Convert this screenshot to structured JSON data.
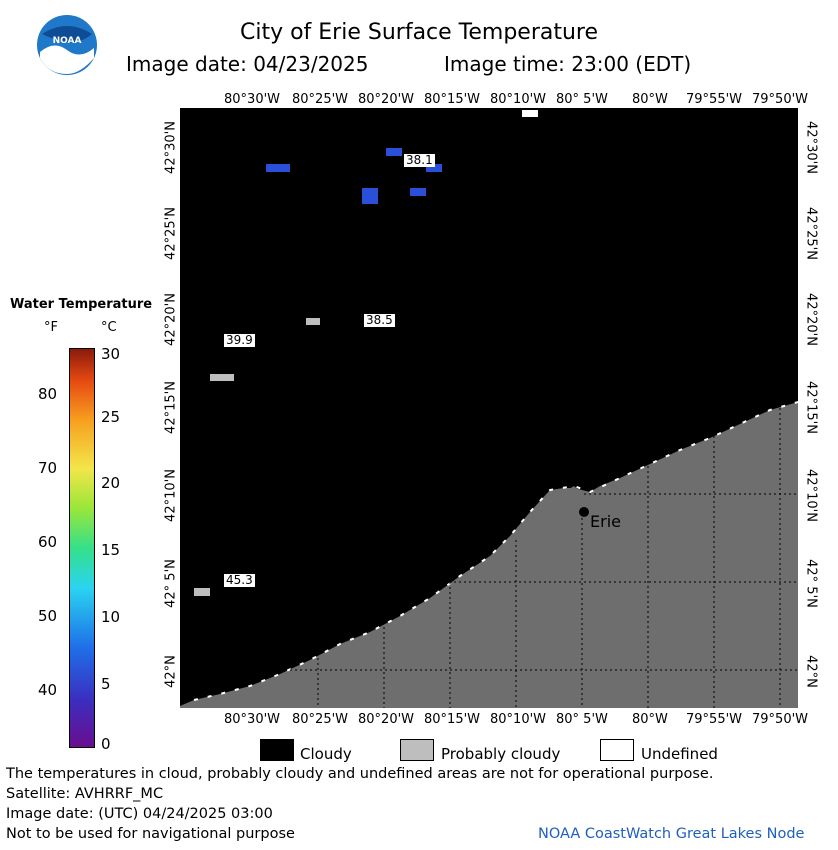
{
  "header": {
    "title": "City of Erie Surface Temperature",
    "date_label": "Image date: 04/23/2025",
    "time_label": "Image time: 23:00 (EDT)"
  },
  "logo": {
    "text": "NOAA"
  },
  "axes": {
    "lon_ticks": [
      "80°30'W",
      "80°25'W",
      "80°20'W",
      "80°15'W",
      "80°10'W",
      "80° 5'W",
      "80°W",
      "79°55'W",
      "79°50'W"
    ],
    "lat_ticks": [
      "42°30'N",
      "42°25'N",
      "42°20'N",
      "42°15'N",
      "42°10'N",
      "42° 5'N",
      "42°N"
    ]
  },
  "colorbar": {
    "title": "Water Temperature",
    "unit_f": "°F",
    "unit_c": "°C",
    "f_ticks": [
      "80",
      "70",
      "60",
      "50",
      "40"
    ],
    "c_ticks": [
      "30",
      "25",
      "20",
      "15",
      "10",
      "5",
      "0"
    ]
  },
  "map": {
    "city_label": "Erie",
    "temp_labels": [
      "38.1",
      "38.5",
      "39.9",
      "45.3"
    ]
  },
  "key": {
    "cloudy": "Cloudy",
    "probably_cloudy": "Probably cloudy",
    "undefined": "Undefined"
  },
  "footer": {
    "disclaimer": "The temperatures in cloud, probably cloudy and undefined areas are not for operational purpose.",
    "satellite": "Satellite: AVHRRF_MC",
    "utc_date": "Image date: (UTC) 04/24/2025  03:00",
    "nav_warning": "Not to be used for navigational purpose",
    "credit": "NOAA CoastWatch Great Lakes Node"
  },
  "colors": {
    "cloudy": "#000000",
    "probably_cloudy": "#bebebe",
    "undefined": "#ffffff",
    "land": "#6e6e6e",
    "credit": "#1f5fbf"
  }
}
